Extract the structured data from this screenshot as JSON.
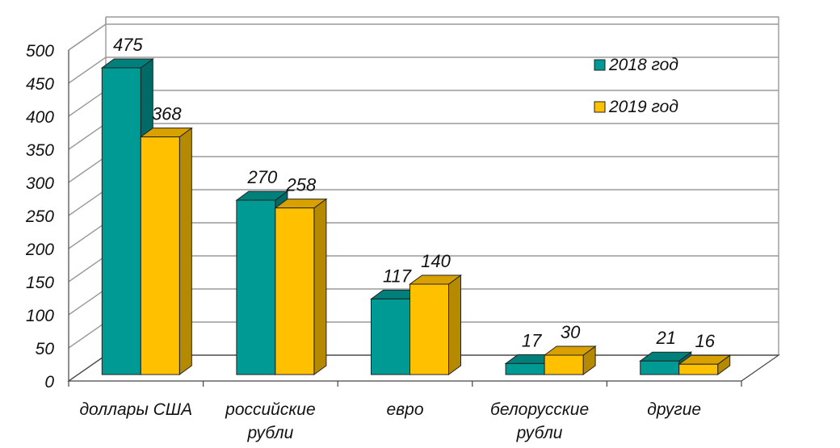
{
  "chart_data": {
    "type": "bar",
    "categories": [
      [
        "доллары США"
      ],
      [
        "российские",
        "рубли"
      ],
      [
        "евро"
      ],
      [
        "белорусские",
        "рубли"
      ],
      [
        "другие"
      ]
    ],
    "series": [
      {
        "name": "2018 год",
        "values": [
          475,
          270,
          117,
          17,
          21
        ],
        "color": "#009a95",
        "side": "#006a67",
        "top": "#007f7b"
      },
      {
        "name": "2019 год",
        "values": [
          368,
          258,
          140,
          30,
          16
        ],
        "color": "#ffc000",
        "side": "#b58900",
        "top": "#d9a100"
      }
    ],
    "yticks": [
      0,
      50,
      100,
      150,
      200,
      250,
      300,
      350,
      400,
      450,
      500
    ],
    "ylim": [
      0,
      500
    ],
    "grid": true,
    "legend_position": "top-right"
  }
}
